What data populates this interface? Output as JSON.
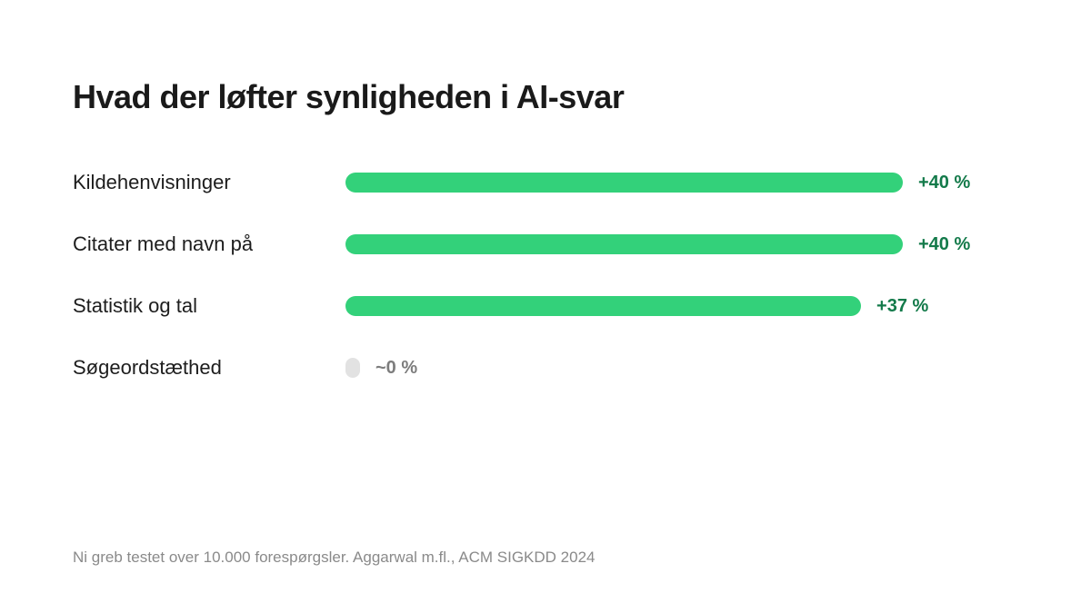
{
  "title": "Hvad der løfter synligheden i AI-svar",
  "footnote": "Ni greb testet over 10.000 forespørgsler. Aggarwal m.fl., ACM SIGKDD 2024",
  "colors": {
    "bar_positive": "#33d17a",
    "bar_neutral": "#e2e2e2",
    "value_positive": "#137a4a",
    "value_neutral": "#7d7d7d"
  },
  "chart_data": {
    "type": "bar",
    "orientation": "horizontal",
    "title": "Hvad der løfter synligheden i AI-svar",
    "xlim": [
      0,
      40
    ],
    "grid": false,
    "categories": [
      "Kildehenvisninger",
      "Citater med navn på",
      "Statistik og tal",
      "Søgeordstæthed"
    ],
    "values": [
      40,
      40,
      37,
      0
    ],
    "value_labels": [
      "+40 %",
      "+40 %",
      "+37 %",
      "~0 %"
    ]
  }
}
